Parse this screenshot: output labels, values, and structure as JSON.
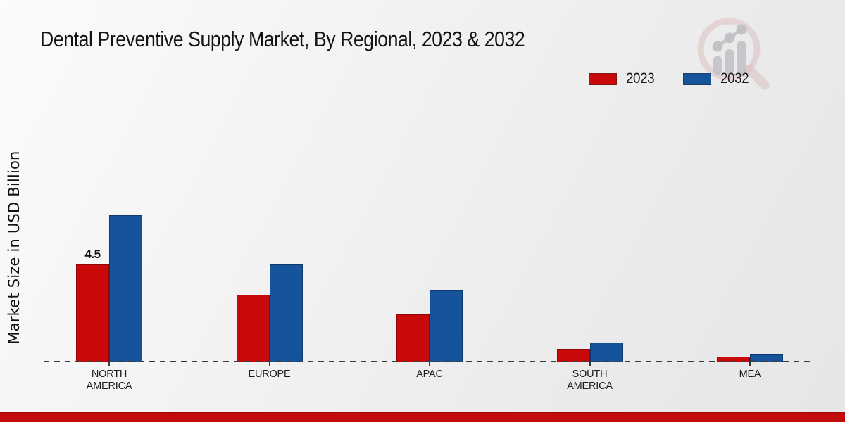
{
  "header": {
    "title": "Dental Preventive Supply Market, By Regional, 2023 & 2032"
  },
  "y_axis": {
    "label": "Market Size in USD Billion"
  },
  "watermark": {
    "name": "market-research-magnifier-logo",
    "ring_color": "#cf9d9d",
    "bar_color": "#9a9aa2"
  },
  "footer": {
    "band_color": "#c20c0c"
  },
  "chart_data": {
    "type": "bar",
    "title": "Dental Preventive Supply Market, By Regional, 2023 & 2032",
    "xlabel": "",
    "ylabel": "Market Size in USD Billion",
    "unit": "USD Billion",
    "ylim": [
      0,
      7.5
    ],
    "grid": false,
    "baseline_style": "dashed",
    "legend_position": "top-right",
    "categories": [
      "NORTH AMERICA",
      "EUROPE",
      "APAC",
      "SOUTH AMERICA",
      "MEA"
    ],
    "category_lines": [
      [
        "NORTH",
        "AMERICA"
      ],
      [
        "EUROPE"
      ],
      [
        "APAC"
      ],
      [
        "SOUTH",
        "AMERICA"
      ],
      [
        "MEA"
      ]
    ],
    "series": [
      {
        "name": "2023",
        "color": "#c90909",
        "border_color": "#8e0606",
        "values": [
          4.5,
          3.1,
          2.2,
          0.6,
          0.25
        ]
      },
      {
        "name": "2032",
        "color": "#15539b",
        "border_color": "#0d3a6e",
        "values": [
          6.75,
          4.5,
          3.3,
          0.9,
          0.35
        ]
      }
    ],
    "bar_labels": [
      {
        "series_index": 0,
        "category_index": 0,
        "text": "4.5"
      }
    ]
  }
}
